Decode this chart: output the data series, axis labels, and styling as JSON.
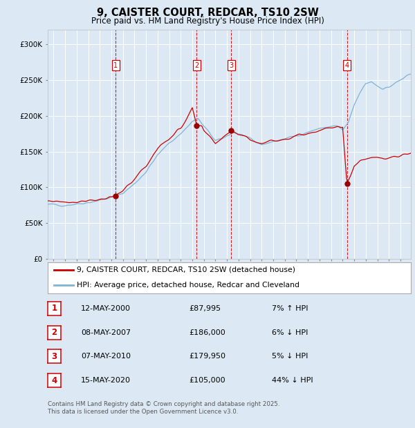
{
  "title": "9, CAISTER COURT, REDCAR, TS10 2SW",
  "subtitle": "Price paid vs. HM Land Registry's House Price Index (HPI)",
  "background_color": "#dce9f5",
  "plot_background": "#dce9f5",
  "legend_label_red": "9, CAISTER COURT, REDCAR, TS10 2SW (detached house)",
  "legend_label_blue": "HPI: Average price, detached house, Redcar and Cleveland",
  "transactions": [
    {
      "num": 1,
      "date": "12-MAY-2000",
      "price": "£87,995",
      "pct": "7%",
      "dir": "↑",
      "year": 2000.37,
      "val": 87995
    },
    {
      "num": 2,
      "date": "08-MAY-2007",
      "price": "£186,000",
      "pct": "6%",
      "dir": "↓",
      "year": 2007.37,
      "val": 186000
    },
    {
      "num": 3,
      "date": "07-MAY-2010",
      "price": "£179,950",
      "pct": "5%",
      "dir": "↓",
      "year": 2010.37,
      "val": 179950
    },
    {
      "num": 4,
      "date": "15-MAY-2020",
      "price": "£105,000",
      "pct": "44%",
      "dir": "↓",
      "year": 2020.37,
      "val": 105000
    }
  ],
  "footnote1": "Contains HM Land Registry data © Crown copyright and database right 2025.",
  "footnote2": "This data is licensed under the Open Government Licence v3.0.",
  "red_color": "#cc0000",
  "blue_color": "#7fb3d3",
  "marker_color": "#990000",
  "ylim": [
    0,
    320000
  ],
  "xlim_start": 1994.5,
  "xlim_end": 2025.9,
  "hpi_keypoints_y": [
    1994.5,
    1995,
    1996,
    1997,
    1998,
    1999,
    2000,
    2001,
    2002,
    2003,
    2004,
    2005,
    2006,
    2007,
    2007.5,
    2008,
    2008.5,
    2009,
    2009.5,
    2010,
    2010.5,
    2011,
    2011.5,
    2012,
    2012.5,
    2013,
    2013.5,
    2014,
    2014.5,
    2015,
    2015.5,
    2016,
    2016.5,
    2017,
    2017.5,
    2018,
    2018.5,
    2019,
    2019.5,
    2020,
    2020.5,
    2021,
    2021.5,
    2022,
    2022.5,
    2023,
    2023.5,
    2024,
    2024.5,
    2025,
    2025.9
  ],
  "hpi_keypoints_v": [
    76000,
    76000,
    75000,
    77000,
    79000,
    82000,
    86000,
    92000,
    105000,
    122000,
    145000,
    162000,
    175000,
    192000,
    196000,
    185000,
    176000,
    165000,
    167000,
    172000,
    177000,
    175000,
    172000,
    167000,
    163000,
    160000,
    162000,
    164000,
    166000,
    168000,
    170000,
    172000,
    175000,
    177000,
    180000,
    182000,
    184000,
    185000,
    186000,
    180000,
    190000,
    215000,
    232000,
    245000,
    248000,
    242000,
    238000,
    240000,
    245000,
    250000,
    258000
  ],
  "red_keypoints_y": [
    1994.5,
    1995,
    1996,
    1997,
    1998,
    1999,
    2000,
    2000.37,
    2001,
    2002,
    2003,
    2004,
    2005,
    2006,
    2007,
    2007.37,
    2007.8,
    2008,
    2008.5,
    2009,
    2009.5,
    2010,
    2010.37,
    2010.8,
    2011,
    2011.5,
    2012,
    2012.5,
    2013,
    2013.5,
    2014,
    2014.5,
    2015,
    2015.5,
    2016,
    2016.5,
    2017,
    2017.5,
    2018,
    2018.5,
    2019,
    2019.5,
    2020,
    2020.37,
    2020.6,
    2021,
    2021.5,
    2022,
    2022.5,
    2023,
    2023.5,
    2024,
    2024.5,
    2025,
    2025.9
  ],
  "red_keypoints_v": [
    81000,
    81000,
    80000,
    80000,
    82000,
    83000,
    85000,
    87995,
    95000,
    112000,
    130000,
    155000,
    168000,
    183000,
    210000,
    186000,
    185000,
    178000,
    170000,
    162000,
    168000,
    175000,
    179950,
    177000,
    175000,
    172000,
    167000,
    163000,
    162000,
    164000,
    165000,
    167000,
    168000,
    170000,
    172000,
    174000,
    176000,
    178000,
    180000,
    182000,
    183000,
    183000,
    185000,
    105000,
    115000,
    130000,
    137000,
    140000,
    142000,
    143000,
    141000,
    140000,
    142000,
    144000,
    148000
  ]
}
